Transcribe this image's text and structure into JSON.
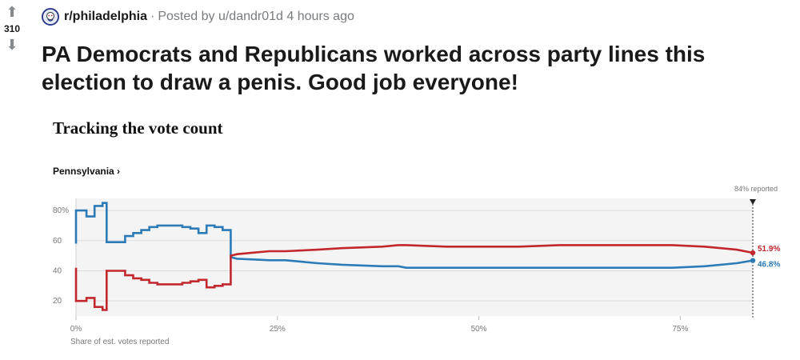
{
  "post": {
    "score": "310",
    "subreddit": "r/philadelphia",
    "separator": "·",
    "posted_by": "Posted by u/dandr01d 4 hours ago",
    "title": "PA Democrats and Republicans worked across party lines this election to draw a penis. Good job everyone!",
    "upvote_icon": "arrow-up-icon",
    "downvote_icon": "arrow-down-icon"
  },
  "chart_data": {
    "type": "line",
    "title": "Tracking the vote count",
    "subtitle": "Pennsylvania ›",
    "xlabel": "Share of est. votes reported",
    "ylabel": "",
    "xlim": [
      0,
      84
    ],
    "ylim": [
      10,
      88
    ],
    "x_ticks": [
      "0%",
      "25%",
      "50%",
      "75%"
    ],
    "x_tick_values": [
      0,
      25,
      50,
      75
    ],
    "y_ticks": [
      "80%",
      "60",
      "40",
      "20"
    ],
    "y_tick_values": [
      80,
      60,
      40,
      20
    ],
    "grid": true,
    "marker_label": "84% reported",
    "marker_x": 84,
    "series": [
      {
        "color": "#2c7bb6",
        "end_label": "46.8%",
        "x": [
          0,
          0,
          1.3,
          1.3,
          2.3,
          2.3,
          3.3,
          3.3,
          3.8,
          3.8,
          5.1,
          5.1,
          6.1,
          6.1,
          7.1,
          7.1,
          8.1,
          8.1,
          9.1,
          9.1,
          10.1,
          10.1,
          13.2,
          13.2,
          14.2,
          14.2,
          15.2,
          15.2,
          16.2,
          16.2,
          17.2,
          17.2,
          18.2,
          18.2,
          19.2,
          19.2,
          20,
          22,
          24,
          26,
          30,
          33,
          38,
          40,
          41,
          46,
          50,
          55,
          60,
          65,
          70,
          74,
          78,
          82,
          84
        ],
        "y": [
          58,
          80,
          80,
          76,
          76,
          83,
          83,
          85,
          85,
          59,
          59,
          59,
          59,
          63,
          63,
          65,
          65,
          67,
          67,
          69,
          69,
          70,
          70,
          69,
          69,
          68,
          68,
          65,
          65,
          70,
          70,
          69,
          69,
          67,
          67,
          49,
          48,
          47.5,
          47,
          47,
          45,
          44,
          43,
          43,
          42,
          42,
          42,
          42,
          42,
          42,
          42,
          42,
          43,
          45,
          46.8
        ]
      },
      {
        "color": "#c1272d",
        "end_label": "51.9%",
        "x": [
          0,
          0,
          1.3,
          1.3,
          2.3,
          2.3,
          3.3,
          3.3,
          3.8,
          3.8,
          5.1,
          5.1,
          6.1,
          6.1,
          7.1,
          7.1,
          8.1,
          8.1,
          9.1,
          9.1,
          10.1,
          10.1,
          13.2,
          13.2,
          14.2,
          14.2,
          15.2,
          15.2,
          16.2,
          16.2,
          17.2,
          17.2,
          18.2,
          18.2,
          19.2,
          19.2,
          20,
          22,
          24,
          26,
          30,
          33,
          38,
          40,
          41,
          46,
          50,
          55,
          60,
          65,
          70,
          74,
          78,
          82,
          84
        ],
        "y": [
          42,
          20,
          20,
          22,
          22,
          16,
          16,
          14,
          14,
          40,
          40,
          40,
          40,
          37,
          37,
          35,
          35,
          34,
          34,
          32,
          32,
          31,
          31,
          32,
          32,
          33,
          33,
          34,
          34,
          29,
          29,
          30,
          30,
          31,
          31,
          50,
          51,
          52,
          53,
          53,
          54,
          55,
          56,
          57,
          57,
          56,
          56,
          56,
          57,
          57,
          57,
          57,
          56,
          54,
          51.9
        ]
      }
    ]
  }
}
